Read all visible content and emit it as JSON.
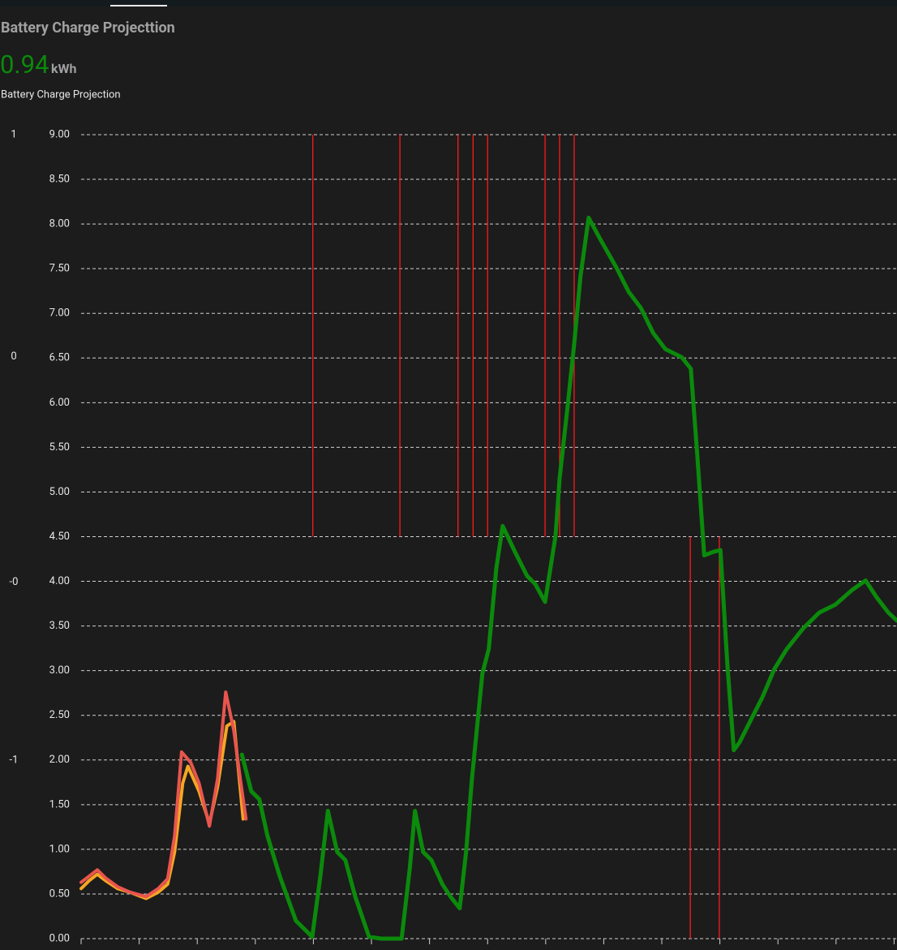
{
  "header": {
    "title": "Battery Charge Projecttion",
    "value": 0.94,
    "unit": "kWh",
    "subtitle": "Battery Charge Projection"
  },
  "chart_data": {
    "type": "line",
    "grid": true,
    "xlim": [
      0,
      14.05
    ],
    "xticks": [
      0,
      1,
      2,
      3,
      4,
      5,
      6,
      7,
      8,
      9,
      10,
      11,
      12,
      13,
      14
    ],
    "ylim": [
      0,
      9
    ],
    "yticks": [
      {
        "value": 0,
        "label": "0.00"
      },
      {
        "value": 0.5,
        "label": "0.50"
      },
      {
        "value": 1,
        "label": "1.00"
      },
      {
        "value": 1.5,
        "label": "1.50"
      },
      {
        "value": 2,
        "label": "2.00"
      },
      {
        "value": 2.5,
        "label": "2.50"
      },
      {
        "value": 3,
        "label": "3.00"
      },
      {
        "value": 3.5,
        "label": "3.50"
      },
      {
        "value": 4,
        "label": "4.00"
      },
      {
        "value": 4.5,
        "label": "4.50"
      },
      {
        "value": 5,
        "label": "5.00"
      },
      {
        "value": 5.5,
        "label": "5.50"
      },
      {
        "value": 6,
        "label": "6.00"
      },
      {
        "value": 6.5,
        "label": "6.50"
      },
      {
        "value": 7,
        "label": "7.00"
      },
      {
        "value": 7.5,
        "label": "7.50"
      },
      {
        "value": 8,
        "label": "8.00"
      },
      {
        "value": 8.5,
        "label": "8.50"
      },
      {
        "value": 9,
        "label": "9.00"
      }
    ],
    "y2lim": [
      -1.57,
      1
    ],
    "y2ticks": [
      1,
      {
        "value": 0.29,
        "label": "0"
      },
      {
        "value": -0.43,
        "label": "-0"
      },
      -1
    ],
    "series": [
      {
        "color": "#0b8a0b",
        "x": [
          2.77,
          2.93,
          3.07,
          3.21,
          3.42,
          3.7,
          3.98,
          4.12,
          4.25,
          4.41,
          4.55,
          4.72,
          4.96,
          5.17,
          5.52,
          5.66,
          5.75,
          5.89,
          6.03,
          6.22,
          6.36,
          6.52,
          6.63,
          6.73,
          6.91,
          7.02,
          7.15,
          7.26,
          7.47,
          7.68,
          7.82,
          7.99,
          8.17,
          8.24,
          8.38,
          8.49,
          8.6,
          8.74,
          8.94,
          9.22,
          9.43,
          9.64,
          9.85,
          10.06,
          10.34,
          10.5,
          10.61,
          10.73,
          10.89,
          11.01,
          11.13,
          11.24,
          11.34,
          11.52,
          11.73,
          11.94,
          12.15,
          12.43,
          12.71,
          12.99,
          13.27,
          13.51,
          13.69,
          13.9,
          14.05
        ],
        "values": [
          2.06,
          1.65,
          1.56,
          1.15,
          0.7,
          0.2,
          0.02,
          0.7,
          1.43,
          0.97,
          0.88,
          0.47,
          0.02,
          0,
          0,
          0.79,
          1.43,
          0.97,
          0.88,
          0.61,
          0.47,
          0.34,
          0.97,
          1.79,
          2.97,
          3.24,
          4.15,
          4.62,
          4.33,
          4.06,
          3.97,
          3.77,
          4.51,
          5.15,
          5.97,
          6.65,
          7.42,
          8.07,
          7.83,
          7.51,
          7.24,
          7.06,
          6.78,
          6.6,
          6.51,
          6.38,
          5.42,
          4.29,
          4.33,
          4.35,
          3.06,
          2.11,
          2.2,
          2.43,
          2.7,
          3.02,
          3.24,
          3.47,
          3.65,
          3.74,
          3.9,
          4.01,
          3.83,
          3.65,
          3.56
        ]
      },
      {
        "color": "#f5a623",
        "x": [
          0,
          0.14,
          0.28,
          0.42,
          0.63,
          0.84,
          1.12,
          1.33,
          1.49,
          1.61,
          1.75,
          1.84,
          2.03,
          2.21,
          2.35,
          2.51,
          2.63,
          2.79
        ],
        "values": [
          0.56,
          0.65,
          0.72,
          0.65,
          0.56,
          0.52,
          0.45,
          0.52,
          0.61,
          0.97,
          1.74,
          1.93,
          1.65,
          1.29,
          1.7,
          2.38,
          2.43,
          1.34
        ]
      },
      {
        "color": "#e8554e",
        "x": [
          0,
          0.14,
          0.28,
          0.42,
          0.63,
          0.84,
          1.12,
          1.33,
          1.49,
          1.61,
          1.73,
          1.89,
          2.03,
          2.21,
          2.35,
          2.49,
          2.63,
          2.74,
          2.84
        ],
        "values": [
          0.63,
          0.7,
          0.77,
          0.68,
          0.58,
          0.52,
          0.47,
          0.56,
          0.67,
          1.15,
          2.09,
          1.97,
          1.74,
          1.26,
          1.79,
          2.76,
          2.33,
          1.79,
          1.34
        ]
      }
    ],
    "ranges": {
      "color": "#ff1a1a",
      "x": [
        3.99,
        5.49,
        6.49,
        6.75,
        7.0,
        7.99,
        8.24,
        8.49,
        10.49,
        10.99
      ],
      "low": [
        4.5,
        4.5,
        4.5,
        4.5,
        4.5,
        4.5,
        4.5,
        4.5,
        0,
        0
      ],
      "high": [
        9,
        9,
        9,
        9,
        9,
        9,
        9,
        9,
        4.5,
        4.5
      ]
    }
  }
}
